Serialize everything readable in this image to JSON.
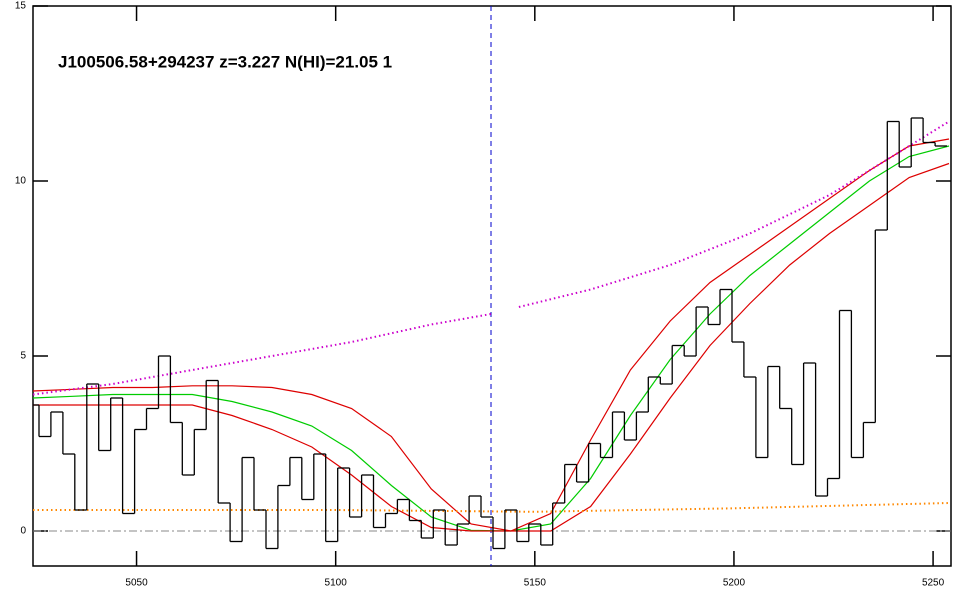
{
  "chart_data": {
    "type": "line",
    "title": "J100506.58+294237 z=3.227 N(HI)=21.05 1",
    "xlim": [
      5024,
      5254.5
    ],
    "ylim": [
      -1,
      15
    ],
    "xticks": [
      5050,
      5100,
      5150,
      5200,
      5250
    ],
    "yticks": [
      0,
      5,
      10,
      15
    ],
    "x": [
      5024,
      5027,
      5030,
      5033,
      5036,
      5039,
      5042,
      5045,
      5048,
      5051,
      5054,
      5057,
      5060,
      5063,
      5066,
      5069,
      5072,
      5075,
      5078,
      5081,
      5084,
      5087,
      5090,
      5093,
      5096,
      5099,
      5102,
      5105,
      5108,
      5111,
      5114,
      5117,
      5120,
      5123,
      5126,
      5129,
      5132,
      5135,
      5138,
      5141,
      5144,
      5147,
      5150,
      5153,
      5156,
      5159,
      5162,
      5165,
      5168,
      5171,
      5174,
      5177,
      5180,
      5183,
      5186,
      5189,
      5192,
      5195,
      5198,
      5201,
      5204,
      5207,
      5210,
      5213,
      5216,
      5219,
      5222,
      5225,
      5228,
      5231,
      5234,
      5237,
      5240,
      5243,
      5246,
      5249,
      5252
    ],
    "values": [
      3.6,
      2.7,
      3.4,
      2.2,
      0.6,
      4.2,
      2.3,
      3.8,
      0.5,
      2.9,
      3.5,
      5.0,
      3.1,
      1.6,
      2.9,
      4.3,
      0.8,
      -0.3,
      2.1,
      0.6,
      -0.5,
      1.3,
      2.1,
      0.9,
      2.2,
      -0.3,
      1.8,
      0.4,
      1.6,
      0.1,
      0.5,
      0.9,
      0.3,
      -0.2,
      0.6,
      -0.4,
      0.2,
      1.0,
      0.4,
      -0.5,
      0.6,
      -0.3,
      0.2,
      -0.4,
      0.8,
      1.9,
      1.4,
      2.5,
      2.1,
      3.4,
      2.6,
      3.4,
      4.4,
      4.2,
      5.3,
      5.0,
      6.4,
      5.9,
      6.9,
      5.4,
      4.4,
      2.1,
      4.7,
      3.5,
      1.9,
      4.8,
      1.0,
      1.5,
      6.3,
      2.1,
      3.1,
      8.6,
      11.7,
      10.4,
      11.8,
      11.1,
      11.0
    ],
    "color": "#000000",
    "series": [
      {
        "color": "#00cc00",
        "style": "solid",
        "x": [
          5024,
          5034,
          5044,
          5054,
          5064,
          5074,
          5084,
          5094,
          5104,
          5114,
          5124,
          5134,
          5144,
          5154,
          5164,
          5174,
          5184,
          5194,
          5204,
          5214,
          5224,
          5234,
          5244,
          5254
        ],
        "values": [
          3.8,
          3.85,
          3.9,
          3.9,
          3.9,
          3.7,
          3.4,
          3.0,
          2.3,
          1.3,
          0.4,
          0.02,
          0,
          0.2,
          1.5,
          3.3,
          4.9,
          6.2,
          7.3,
          8.2,
          9.1,
          10.0,
          10.7,
          11.0
        ]
      },
      {
        "color": "#dd0000",
        "style": "solid",
        "x": [
          5024,
          5034,
          5044,
          5054,
          5064,
          5074,
          5084,
          5094,
          5104,
          5114,
          5124,
          5134,
          5144,
          5154,
          5164,
          5174,
          5184,
          5194,
          5204,
          5214,
          5224,
          5234,
          5244,
          5254
        ],
        "values": [
          4.0,
          4.05,
          4.1,
          4.1,
          4.15,
          4.15,
          4.1,
          3.9,
          3.5,
          2.7,
          1.2,
          0.2,
          0,
          0.5,
          2.6,
          4.6,
          6.0,
          7.1,
          7.9,
          8.7,
          9.5,
          10.3,
          11.0,
          11.2
        ]
      },
      {
        "color": "#dd0000",
        "style": "solid",
        "x": [
          5024,
          5034,
          5044,
          5054,
          5064,
          5074,
          5084,
          5094,
          5104,
          5114,
          5124,
          5134,
          5144,
          5154,
          5164,
          5174,
          5184,
          5194,
          5204,
          5214,
          5224,
          5234,
          5244,
          5254
        ],
        "values": [
          3.6,
          3.6,
          3.6,
          3.6,
          3.6,
          3.3,
          2.9,
          2.4,
          1.6,
          0.7,
          0.1,
          0,
          0,
          0,
          0.7,
          2.2,
          3.8,
          5.3,
          6.5,
          7.6,
          8.5,
          9.3,
          10.1,
          10.5
        ]
      },
      {
        "color": "#cc00cc",
        "style": "dotted",
        "x": [
          5024,
          5044,
          5064,
          5084,
          5104,
          5124,
          5139,
          5142,
          5146,
          5164,
          5184,
          5204,
          5224,
          5244,
          5254
        ],
        "values": [
          3.9,
          4.2,
          4.6,
          5.0,
          5.4,
          5.9,
          6.2,
          null,
          6.4,
          6.9,
          7.6,
          8.5,
          9.6,
          11.0,
          11.7
        ]
      },
      {
        "color": "#ff8800",
        "style": "dotted",
        "x": [
          5024,
          5100,
          5150,
          5200,
          5254
        ],
        "values": [
          0.6,
          0.6,
          0.55,
          0.65,
          0.8
        ]
      }
    ],
    "hline": 0,
    "vline": 5139
  }
}
